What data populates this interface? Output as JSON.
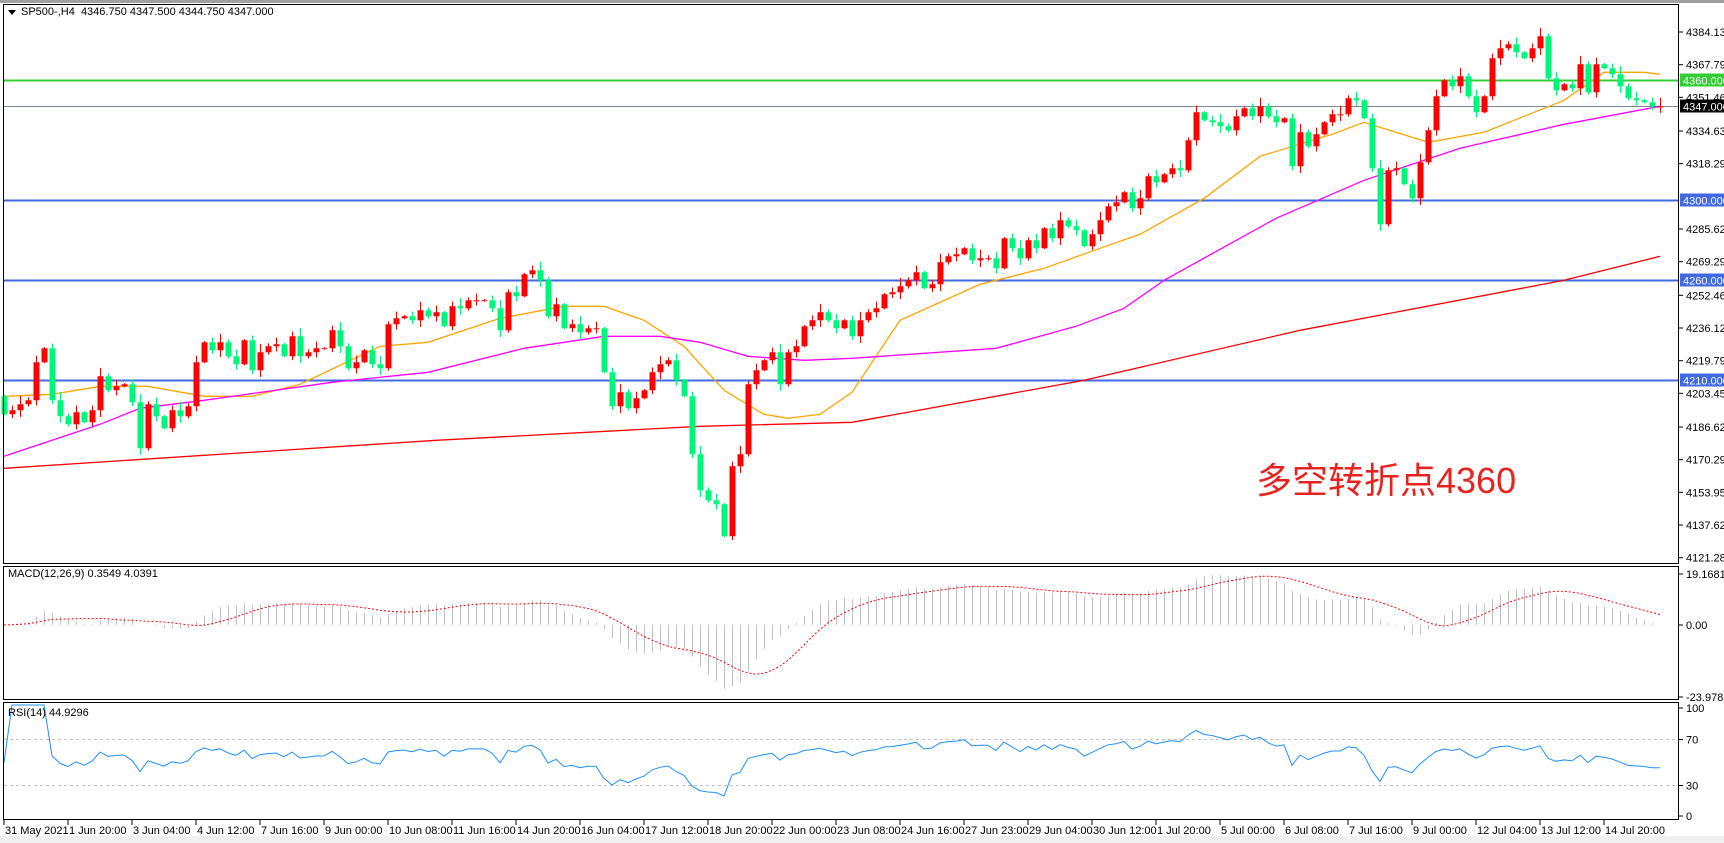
{
  "header": {
    "symbol": "SP500-,H4",
    "ohlc": "4346.750 4347.500 4344.750 4347.000"
  },
  "annotation": "多空转折点4360",
  "colors": {
    "up": "#ff0000",
    "down": "#00f57a",
    "ma_fast": "#ffa500",
    "ma_mid": "#ff00ff",
    "ma_slow": "#ff0000",
    "level_blue": "#4169e1",
    "level_green": "#32cd32",
    "current": "#778899",
    "rsi": "#1e90ff",
    "macd_hist": "#c0c0c0",
    "macd_signal": "#ff0000"
  },
  "chart_data": [
    {
      "type": "candlestick",
      "title": "SP500-,H4",
      "ylim": [
        4121.285,
        4384.13
      ],
      "y_ticks": [
        "4384.130",
        "4367.795",
        "4351.460",
        "4334.630",
        "4318.295",
        "4285.625",
        "4269.290",
        "4252.460",
        "4236.125",
        "4219.790",
        "4203.455",
        "4186.625",
        "4170.290",
        "4153.955",
        "4137.620",
        "4121.285"
      ],
      "x_labels": [
        "31 May 2021",
        "1 Jun 20:00",
        "3 Jun 04:00",
        "4 Jun 12:00",
        "7 Jun 16:00",
        "9 Jun 00:00",
        "10 Jun 08:00",
        "11 Jun 16:00",
        "14 Jun 20:00",
        "16 Jun 04:00",
        "17 Jun 12:00",
        "18 Jun 20:00",
        "22 Jun 00:00",
        "23 Jun 08:00",
        "24 Jun 16:00",
        "27 Jun 23:00",
        "29 Jun 04:00",
        "30 Jun 12:00",
        "1 Jul 20:00",
        "5 Jul 00:00",
        "6 Jul 08:00",
        "7 Jul 16:00",
        "9 Jul 00:00",
        "12 Jul 04:00",
        "13 Jul 12:00",
        "14 Jul 20:00"
      ],
      "first_open": 4202,
      "close": [
        4193,
        4195,
        4198,
        4200,
        4219,
        4226,
        4200,
        4192,
        4188,
        4194,
        4189,
        4195,
        4212,
        4205,
        4207,
        4208,
        4199,
        4176,
        4198,
        4192,
        4186,
        4195,
        4192,
        4197,
        4219,
        4229,
        4225,
        4229,
        4222,
        4218,
        4230,
        4215,
        4224,
        4227,
        4228,
        4222,
        4232,
        4222,
        4224,
        4226,
        4226,
        4235,
        4227,
        4216,
        4219,
        4225,
        4218,
        4216,
        4238,
        4241,
        4242,
        4240,
        4245,
        4242,
        4244,
        4237,
        4247,
        4246,
        4250,
        4250,
        4250,
        4246,
        4235,
        4254,
        4252,
        4263,
        4265,
        4260,
        4242,
        4248,
        4236,
        4238,
        4234,
        4236,
        4236,
        4214,
        4197,
        4204,
        4196,
        4201,
        4205,
        4214,
        4218,
        4220,
        4210,
        4202,
        4173,
        4155,
        4150,
        4148,
        4132,
        4167,
        4173,
        4208,
        4215,
        4220,
        4224,
        4208,
        4224,
        4227,
        4237,
        4240,
        4244,
        4240,
        4236,
        4240,
        4232,
        4240,
        4244,
        4246,
        4253,
        4254,
        4257,
        4260,
        4264,
        4256,
        4258,
        4269,
        4272,
        4273,
        4276,
        4270,
        4271,
        4271,
        4266,
        4281,
        4276,
        4271,
        4280,
        4276,
        4286,
        4281,
        4290,
        4287,
        4285,
        4277,
        4283,
        4290,
        4297,
        4299,
        4304,
        4296,
        4301,
        4312,
        4309,
        4313,
        4316,
        4315,
        4330,
        4344,
        4340,
        4339,
        4337,
        4335,
        4342,
        4346,
        4342,
        4347,
        4342,
        4339,
        4341,
        4317,
        4334,
        4327,
        4333,
        4339,
        4343,
        4343,
        4351,
        4350,
        4341,
        4316,
        4288,
        4315,
        4316,
        4308,
        4301,
        4319,
        4335,
        4352,
        4360,
        4357,
        4362,
        4352,
        4344,
        4352,
        4371,
        4376,
        4378,
        4374,
        4371,
        4376,
        4382,
        4361,
        4355,
        4358,
        4356,
        4368,
        4354,
        4368,
        4366,
        4363,
        4357,
        4351,
        4350,
        4349,
        4347,
        4347
      ],
      "moving_averages": [
        {
          "color": "#ffa500",
          "points": [
            [
              0,
              4202
            ],
            [
              6,
              4203
            ],
            [
              12,
              4207
            ],
            [
              18,
              4207
            ],
            [
              25,
              4202
            ],
            [
              31,
              4202
            ],
            [
              37,
              4208
            ],
            [
              47,
              4227
            ],
            [
              53,
              4229
            ],
            [
              62,
              4241
            ],
            [
              70,
              4247
            ],
            [
              75,
              4247
            ],
            [
              80,
              4240
            ],
            [
              85,
              4227
            ],
            [
              90,
              4205
            ],
            [
              95,
              4193
            ],
            [
              98,
              4191
            ],
            [
              102,
              4193
            ],
            [
              106,
              4204
            ],
            [
              112,
              4240
            ],
            [
              122,
              4258
            ],
            [
              130,
              4266
            ],
            [
              137,
              4276
            ],
            [
              142,
              4283
            ],
            [
              150,
              4301
            ],
            [
              157,
              4322
            ],
            [
              166,
              4333
            ],
            [
              170,
              4339
            ],
            [
              178,
              4329
            ],
            [
              185,
              4334
            ],
            [
              190,
              4342
            ],
            [
              195,
              4350
            ],
            [
              200,
              4364
            ],
            [
              205,
              4364
            ],
            [
              207,
              4363
            ]
          ]
        },
        {
          "color": "#ff00ff",
          "points": [
            [
              0,
              4172
            ],
            [
              12,
              4188
            ],
            [
              17,
              4196
            ],
            [
              25,
              4200
            ],
            [
              41,
              4209
            ],
            [
              53,
              4214
            ],
            [
              65,
              4226
            ],
            [
              75,
              4232
            ],
            [
              82,
              4232
            ],
            [
              87,
              4229
            ],
            [
              93,
              4222
            ],
            [
              100,
              4220
            ],
            [
              106,
              4221
            ],
            [
              124,
              4226
            ],
            [
              134,
              4237
            ],
            [
              140,
              4246
            ],
            [
              145,
              4260
            ],
            [
              159,
              4291
            ],
            [
              170,
              4310
            ],
            [
              182,
              4326
            ],
            [
              195,
              4338
            ],
            [
              207,
              4347
            ]
          ]
        },
        {
          "color": "#ff0000",
          "points": [
            [
              0,
              4166
            ],
            [
              54,
              4180
            ],
            [
              87,
              4187
            ],
            [
              106,
              4189
            ],
            [
              135,
              4210
            ],
            [
              162,
              4235
            ],
            [
              195,
              4260
            ],
            [
              207,
              4272
            ]
          ]
        }
      ],
      "levels": [
        {
          "price": 4360,
          "label": "4360.000",
          "color": "#32cd32"
        },
        {
          "price": 4347,
          "label": "4347.000",
          "color": "#778899",
          "label_bg": "#000000"
        },
        {
          "price": 4300,
          "label": "4300.000",
          "color": "#4169e1"
        },
        {
          "price": 4260,
          "label": "4260.000",
          "color": "#4169e1"
        },
        {
          "price": 4210,
          "label": "4210.000",
          "color": "#4169e1"
        }
      ]
    },
    {
      "type": "bar",
      "title": "MACD(12,26,9) 0.3549 4.0391",
      "params": [
        12,
        26,
        9
      ],
      "ylim": [
        -23.9781,
        19.1681
      ],
      "y_ticks": [
        "19.1681",
        "0.00",
        "-23.9781"
      ]
    },
    {
      "type": "line",
      "title": "RSI(14) 44.9296",
      "period": 14,
      "ylim": [
        0,
        100
      ],
      "levels": [
        70,
        30
      ],
      "y_ticks": [
        "100",
        "70",
        "30",
        "0"
      ]
    }
  ]
}
